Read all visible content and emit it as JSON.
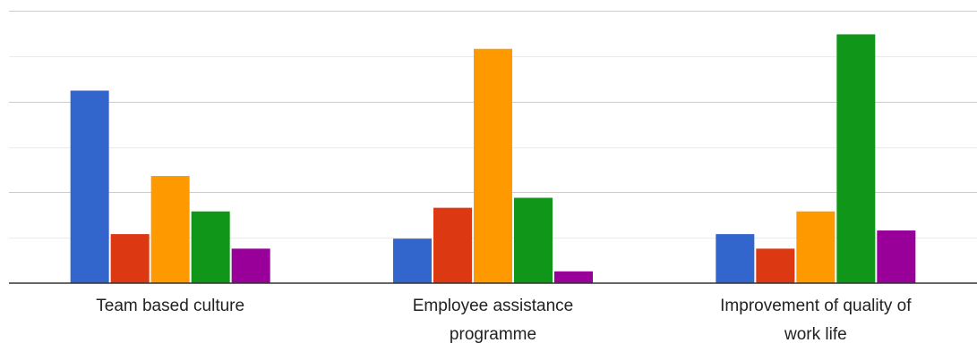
{
  "chart_data": {
    "type": "bar",
    "title": "",
    "xlabel": "",
    "ylabel": "",
    "grid": true,
    "legend": "none",
    "categories": [
      [
        "Team based culture"
      ],
      [
        "Employee assistance",
        "programme"
      ],
      [
        "Improvement of quality of",
        "work life"
      ]
    ],
    "ylim": [
      0,
      30
    ],
    "series": [
      {
        "color": "#3366cc",
        "values": [
          21.2,
          4.9,
          5.4
        ]
      },
      {
        "color": "#dc3912",
        "values": [
          5.4,
          8.3,
          3.8
        ]
      },
      {
        "color": "#ff9900",
        "values": [
          11.8,
          25.8,
          7.9
        ]
      },
      {
        "color": "#109618",
        "values": [
          7.9,
          9.4,
          27.4
        ]
      },
      {
        "color": "#990099",
        "values": [
          3.8,
          1.3,
          5.8
        ]
      }
    ]
  }
}
